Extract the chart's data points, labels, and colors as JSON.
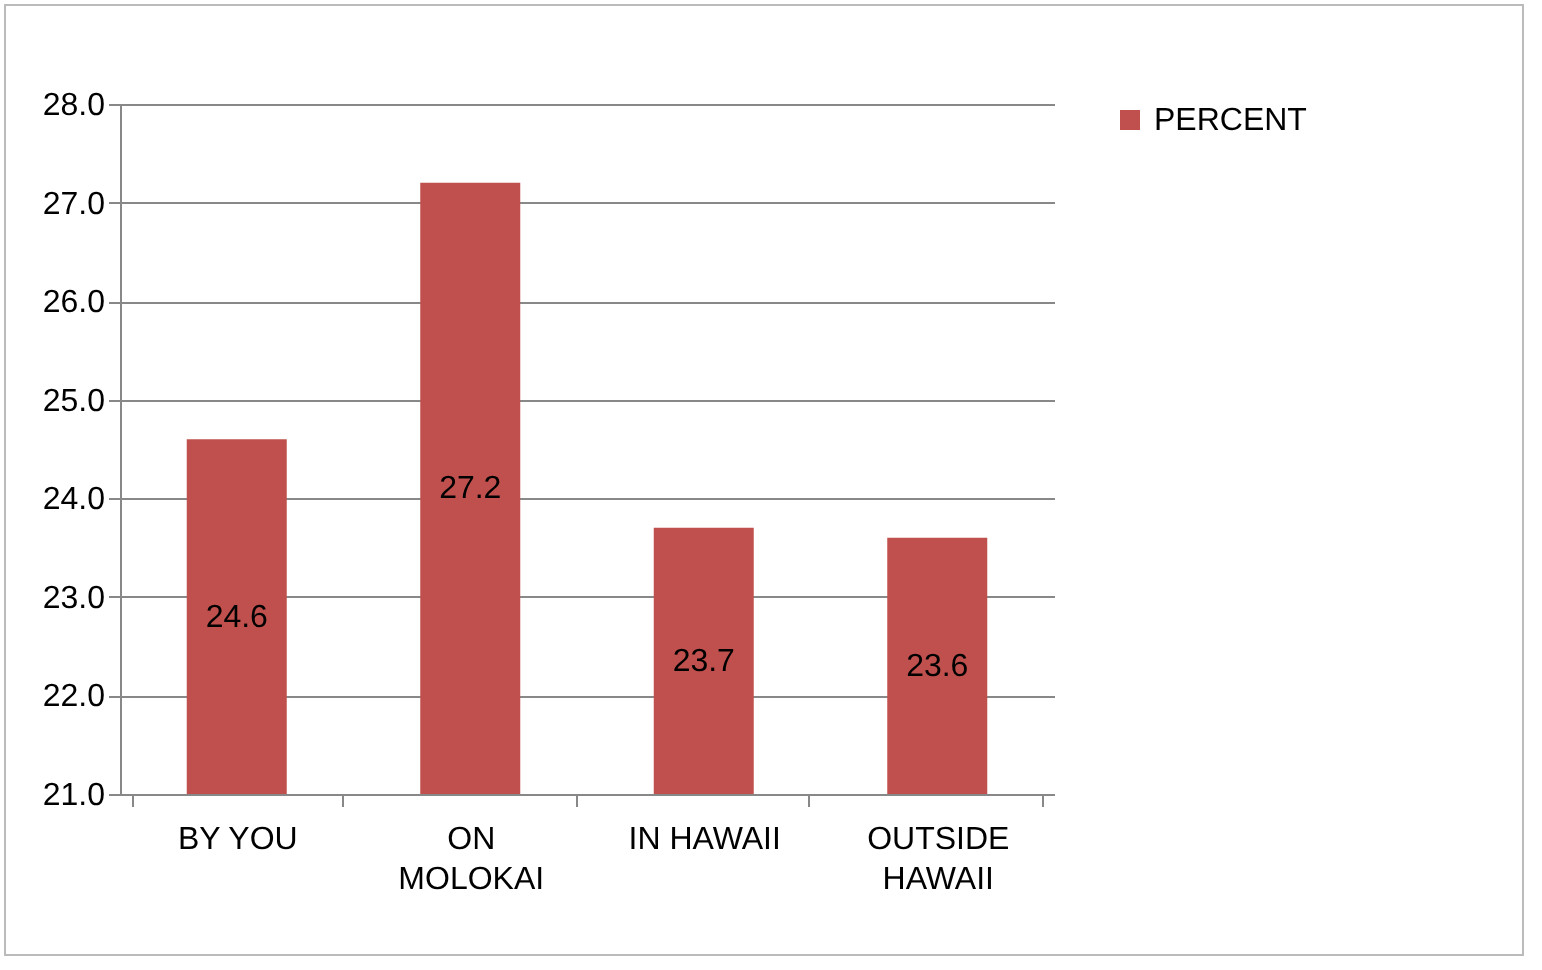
{
  "chart_data": {
    "type": "bar",
    "categories": [
      "BY YOU",
      "ON MOLOKAI",
      "IN HAWAII",
      "OUTSIDE HAWAII"
    ],
    "series": [
      {
        "name": "PERCENT",
        "color": "#c0504d",
        "values": [
          24.6,
          27.2,
          23.7,
          23.6
        ]
      }
    ],
    "ylim": [
      21,
      28
    ],
    "yticks": [
      {
        "value": 21,
        "label": "21.0"
      },
      {
        "value": 22,
        "label": "22.0"
      },
      {
        "value": 23,
        "label": "23.0"
      },
      {
        "value": 24,
        "label": "24.0"
      },
      {
        "value": 25,
        "label": "25.0"
      },
      {
        "value": 26,
        "label": "26.0"
      },
      {
        "value": 27,
        "label": "27.0"
      },
      {
        "value": 28,
        "label": "28.0"
      }
    ],
    "grid": "y",
    "legend": "right",
    "data_labels": true
  }
}
